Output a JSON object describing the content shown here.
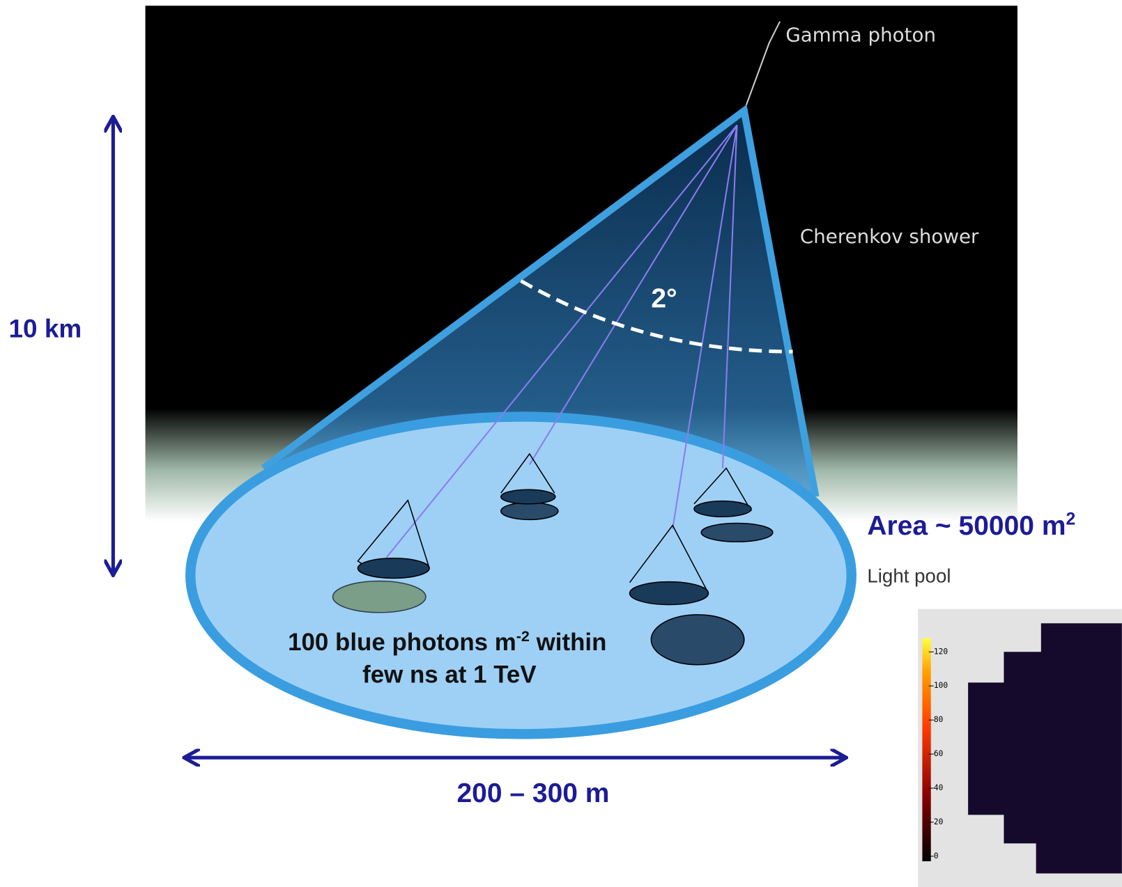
{
  "labels": {
    "gamma": "Gamma photon",
    "shower": "Cherenkov shower",
    "angle": "2°",
    "height": "10 km",
    "area": {
      "text": "Area ~ 50000 m",
      "sup": "2"
    },
    "pool": "Light pool",
    "photons": {
      "text": "100 blue photons m",
      "sup": "-2",
      "rest": " within",
      "line2": "few ns at 1 TeV"
    },
    "width": "200 – 300 m"
  },
  "colorbar": {
    "lim": [
      0,
      128
    ],
    "ticks": [
      0,
      20,
      40,
      60,
      80,
      100,
      120
    ]
  }
}
